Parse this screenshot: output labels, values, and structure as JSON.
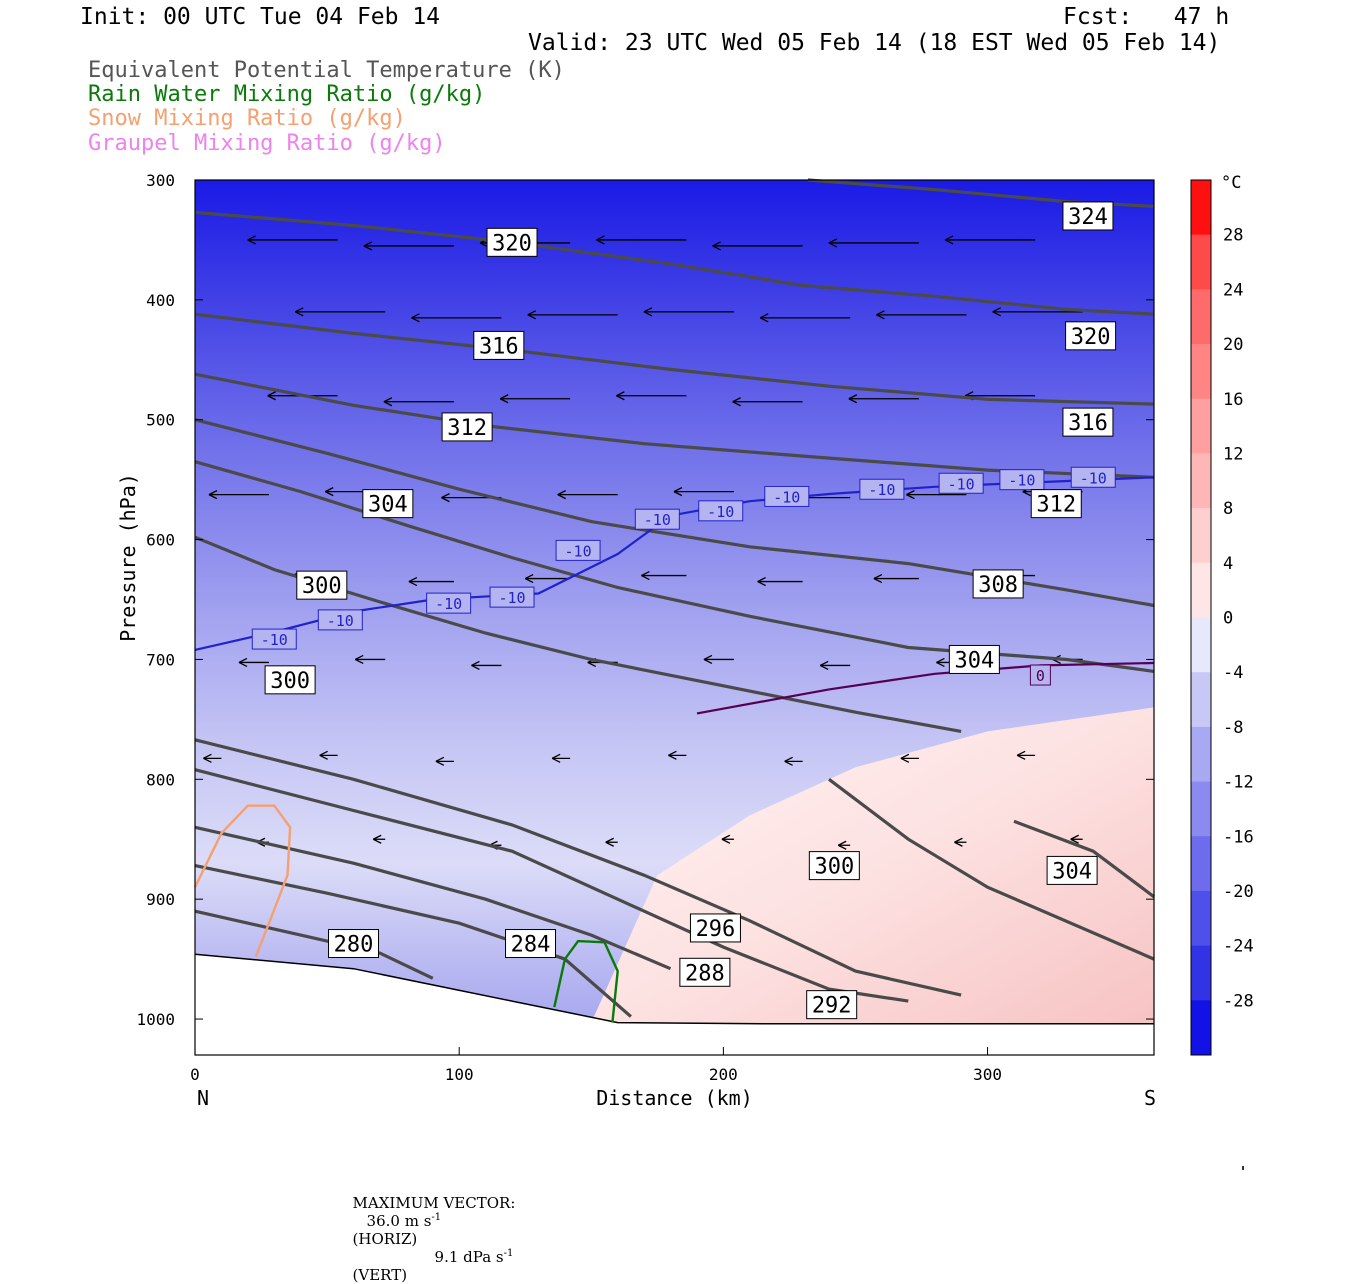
{
  "header": {
    "init": "Init: 00 UTC Tue 04 Feb 14",
    "fcst": "Fcst:   47 h",
    "valid": "Valid: 23 UTC Wed 05 Feb 14 (18 EST Wed 05 Feb 14)"
  },
  "legend": [
    {
      "label": "Equivalent Potential Temperature (K)",
      "color": "#555555"
    },
    {
      "label": "Rain Water Mixing Ratio (g/kg)",
      "color": "#0a7a0a"
    },
    {
      "label": "Snow Mixing Ratio (g/kg)",
      "color": "#f4a070"
    },
    {
      "label": "Graupel Mixing Ratio (g/kg)",
      "color": "#ee82ee"
    }
  ],
  "footer": {
    "max_vector_label": "MAXIMUM VECTOR:",
    "horiz": "36.0 m s",
    "horiz_unit": "(HORIZ)",
    "vert": "9.1 dPa s",
    "vert_unit": "(VERT)",
    "exp": "-1"
  },
  "chart_data": {
    "type": "heatmap",
    "title": "",
    "xlabel": "Distance (km)",
    "ylabel": "Pressure (hPa)",
    "xlim": [
      0,
      363
    ],
    "ylim": [
      1030,
      300
    ],
    "x_ticks": [
      0,
      100,
      200,
      300
    ],
    "y_ticks": [
      300,
      400,
      500,
      600,
      700,
      800,
      900,
      1000
    ],
    "x_end_labels": {
      "left": "N",
      "right": "S"
    },
    "colorbar": {
      "unit": "°C",
      "ticks": [
        28,
        24,
        20,
        16,
        12,
        8,
        4,
        0,
        -4,
        -8,
        -12,
        -16,
        -20,
        -24,
        -28
      ],
      "min": -32,
      "max": 32
    },
    "theta_e_contours": [
      {
        "value": 324,
        "points": [
          [
            232,
            300
          ],
          [
            280,
            308
          ],
          [
            330,
            318
          ],
          [
            363,
            322
          ]
        ],
        "label": [
          338,
          330
        ]
      },
      {
        "value": 320,
        "points": [
          [
            0,
            327
          ],
          [
            60,
            338
          ],
          [
            120,
            352
          ],
          [
            180,
            370
          ],
          [
            230,
            388
          ],
          [
            280,
            397
          ],
          [
            330,
            408
          ],
          [
            363,
            412
          ]
        ],
        "label": [
          120,
          352
        ]
      },
      {
        "value": 320,
        "points": [
          [
            0,
            327
          ],
          [
            363,
            412
          ]
        ],
        "label": [
          339,
          430
        ]
      },
      {
        "value": 316,
        "points": [
          [
            0,
            412
          ],
          [
            60,
            428
          ],
          [
            120,
            442
          ],
          [
            180,
            458
          ],
          [
            240,
            472
          ],
          [
            300,
            483
          ],
          [
            363,
            487
          ]
        ],
        "label": [
          115,
          438
        ]
      },
      {
        "value": 316,
        "points": [
          [
            0,
            412
          ],
          [
            363,
            487
          ]
        ],
        "label": [
          338,
          502
        ]
      },
      {
        "value": 312,
        "points": [
          [
            0,
            462
          ],
          [
            60,
            488
          ],
          [
            110,
            505
          ],
          [
            170,
            520
          ],
          [
            240,
            532
          ],
          [
            300,
            542
          ],
          [
            363,
            548
          ]
        ],
        "label": [
          103,
          506
        ]
      },
      {
        "value": 312,
        "points": [
          [
            0,
            462
          ],
          [
            363,
            548
          ]
        ],
        "label": [
          326,
          570
        ]
      },
      {
        "value": 308,
        "points": [
          [
            0,
            500
          ],
          [
            50,
            528
          ],
          [
            100,
            558
          ],
          [
            150,
            585
          ],
          [
            210,
            606
          ],
          [
            270,
            620
          ],
          [
            330,
            642
          ],
          [
            363,
            655
          ]
        ],
        "label": [
          304,
          637
        ]
      },
      {
        "value": 304,
        "points": [
          [
            0,
            535
          ],
          [
            40,
            560
          ],
          [
            80,
            588
          ],
          [
            120,
            615
          ],
          [
            160,
            640
          ],
          [
            210,
            664
          ],
          [
            270,
            690
          ],
          [
            330,
            700
          ],
          [
            363,
            710
          ]
        ],
        "label": [
          73,
          570
        ]
      },
      {
        "value": 304,
        "points": [
          [
            0,
            535
          ],
          [
            363,
            710
          ]
        ],
        "label": [
          295,
          700
        ]
      },
      {
        "value": 300,
        "points": [
          [
            0,
            598
          ],
          [
            30,
            625
          ],
          [
            70,
            652
          ],
          [
            110,
            678
          ],
          [
            150,
            700
          ],
          [
            200,
            722
          ],
          [
            250,
            744
          ],
          [
            290,
            760
          ]
        ],
        "label": [
          48,
          638
        ]
      },
      {
        "value": 300,
        "points": [
          [
            0,
            598
          ],
          [
            290,
            760
          ]
        ],
        "label": [
          36,
          717
        ]
      },
      {
        "value": 296,
        "points": [
          [
            0,
            767
          ],
          [
            60,
            800
          ],
          [
            120,
            838
          ],
          [
            170,
            880
          ],
          [
            210,
            918
          ],
          [
            250,
            960
          ],
          [
            290,
            980
          ]
        ],
        "label": [
          197,
          924
        ]
      },
      {
        "value": 292,
        "points": [
          [
            0,
            792
          ],
          [
            60,
            826
          ],
          [
            120,
            860
          ],
          [
            160,
            900
          ],
          [
            200,
            940
          ],
          [
            240,
            975
          ],
          [
            270,
            985
          ]
        ],
        "label": [
          241,
          988
        ]
      },
      {
        "value": 288,
        "points": [
          [
            0,
            840
          ],
          [
            60,
            870
          ],
          [
            110,
            900
          ],
          [
            150,
            930
          ],
          [
            180,
            958
          ]
        ],
        "label": [
          193,
          961
        ]
      },
      {
        "value": 284,
        "points": [
          [
            0,
            872
          ],
          [
            50,
            895
          ],
          [
            100,
            920
          ],
          [
            140,
            950
          ],
          [
            165,
            998
          ]
        ],
        "label": [
          127,
          937
        ]
      },
      {
        "value": 280,
        "points": [
          [
            0,
            910
          ],
          [
            40,
            930
          ],
          [
            70,
            945
          ],
          [
            90,
            966
          ]
        ],
        "label": [
          60,
          937
        ]
      },
      {
        "value": 304,
        "points": [
          [
            310,
            835
          ],
          [
            340,
            860
          ],
          [
            363,
            898
          ]
        ],
        "label": [
          332,
          876
        ]
      },
      {
        "value": 300,
        "points": [
          [
            240,
            800
          ],
          [
            270,
            850
          ],
          [
            300,
            890
          ],
          [
            363,
            950
          ]
        ],
        "label": [
          242,
          872
        ]
      }
    ],
    "temperature_isotherms": [
      {
        "value": -10,
        "points": [
          [
            0,
            692
          ],
          [
            30,
            677
          ],
          [
            60,
            660
          ],
          [
            90,
            650
          ],
          [
            130,
            645
          ],
          [
            160,
            612
          ],
          [
            180,
            580
          ],
          [
            210,
            568
          ],
          [
            240,
            562
          ],
          [
            280,
            556
          ],
          [
            320,
            552
          ],
          [
            363,
            548
          ]
        ],
        "labels": [
          [
            30,
            683
          ],
          [
            55,
            667
          ],
          [
            96,
            653
          ],
          [
            120,
            648
          ],
          [
            145,
            609
          ],
          [
            175,
            583
          ],
          [
            199,
            576
          ],
          [
            224,
            564
          ],
          [
            260,
            558
          ],
          [
            290,
            553
          ],
          [
            313,
            550
          ],
          [
            340,
            548
          ]
        ]
      },
      {
        "value": 0,
        "points": [
          [
            190,
            745
          ],
          [
            240,
            725
          ],
          [
            280,
            712
          ],
          [
            320,
            705
          ],
          [
            363,
            703
          ]
        ],
        "labels": [
          [
            320,
            713
          ]
        ]
      }
    ],
    "snow_contour": [
      [
        0,
        890
      ],
      [
        10,
        845
      ],
      [
        20,
        822
      ],
      [
        30,
        822
      ],
      [
        36,
        840
      ],
      [
        35,
        880
      ],
      [
        28,
        920
      ],
      [
        23,
        948
      ]
    ],
    "rain_contour": [
      [
        136,
        990
      ],
      [
        140,
        950
      ],
      [
        145,
        935
      ],
      [
        155,
        936
      ],
      [
        160,
        960
      ],
      [
        158,
        1003
      ]
    ],
    "max_vector": {
      "horiz_m_s": 36.0,
      "vert_dPa_s": 9.1
    }
  }
}
